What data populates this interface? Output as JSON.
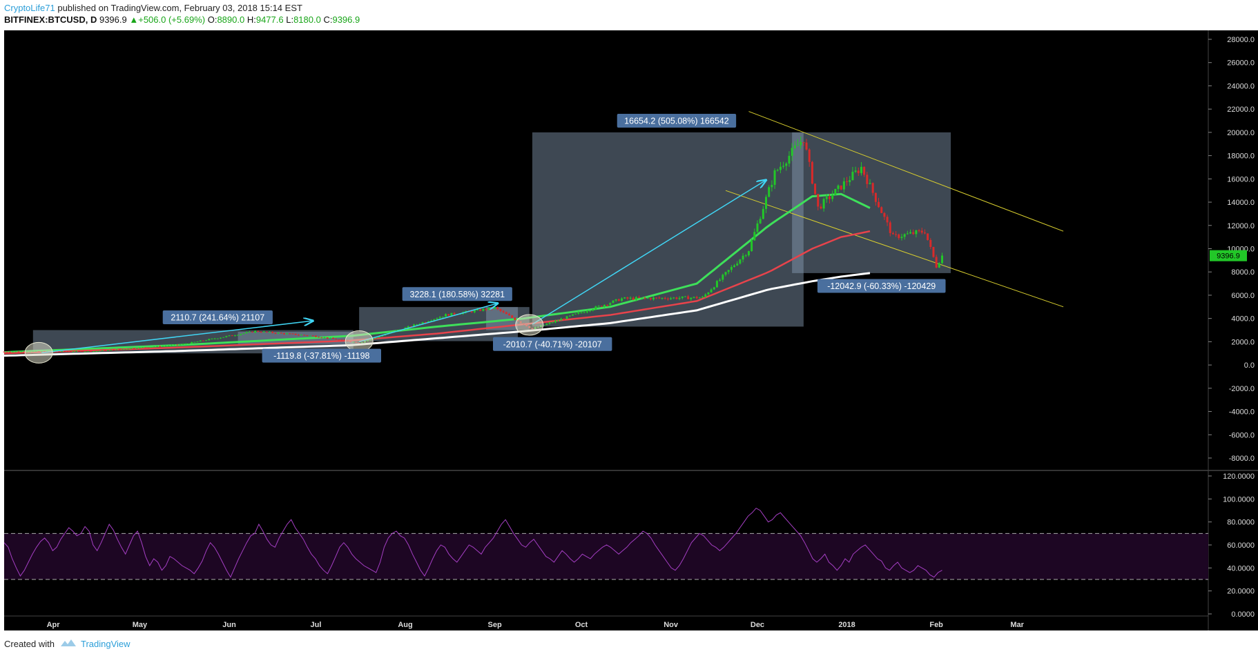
{
  "header": {
    "author": "CryptoLife71",
    "published_text": "published on TradingView.com, February 03, 2018 15:14 EST",
    "symbol": "BITFINEX:BTCUSD, D",
    "last": "9396.9",
    "change": "+506.0 (+5.69%)",
    "o_label": "O:",
    "o_value": "8890.0",
    "h_label": "H:",
    "h_value": "9477.6",
    "l_label": "L:",
    "l_value": "8180.0",
    "c_label": "C:",
    "c_value": "9396.9"
  },
  "footer": {
    "created_with": "Created with",
    "brand": "TradingView"
  },
  "colors": {
    "background": "#000000",
    "ma_green": "#3ee05a",
    "ma_red": "#e8434b",
    "ma_white": "#ffffff",
    "candle_up": "#22c728",
    "candle_down": "#d82a2a",
    "rsi_line": "#a53fc4",
    "channel": "#d9cf2e",
    "arrow": "#40d6f5",
    "box_fill": "#8a9fb8",
    "label_bg": "#4a6f9e",
    "price_tag": "#22c728"
  },
  "chart_data": [
    {
      "type": "candlestick",
      "x_axis_labels": [
        "Apr",
        "May",
        "Jun",
        "Jul",
        "Aug",
        "Sep",
        "Oct",
        "Nov",
        "Dec",
        "2018",
        "Feb",
        "Mar"
      ],
      "y_ticks": [
        "28000.0",
        "26000.0",
        "24000.0",
        "22000.0",
        "20000.0",
        "18000.0",
        "16000.0",
        "14000.0",
        "12000.0",
        "10000.0",
        "8000.0",
        "6000.0",
        "4000.0",
        "2000.0",
        "0.0",
        "-2000.0",
        "-4000.0",
        "-6000.0",
        "-8000.0"
      ],
      "ylim": [
        -8800,
        29000
      ],
      "last_price_tag": "9396.9",
      "price_path_approx": [
        {
          "date": "2017-03-15",
          "close": 1150
        },
        {
          "date": "2017-04-15",
          "close": 1180
        },
        {
          "date": "2017-05-15",
          "close": 1750
        },
        {
          "date": "2017-06-10",
          "close": 2900
        },
        {
          "date": "2017-06-30",
          "close": 2500
        },
        {
          "date": "2017-07-16",
          "close": 1900
        },
        {
          "date": "2017-08-15",
          "close": 4300
        },
        {
          "date": "2017-09-01",
          "close": 4900
        },
        {
          "date": "2017-09-14",
          "close": 3100
        },
        {
          "date": "2017-10-15",
          "close": 5700
        },
        {
          "date": "2017-11-12",
          "close": 5800
        },
        {
          "date": "2017-11-28",
          "close": 9900
        },
        {
          "date": "2017-12-07",
          "close": 16500
        },
        {
          "date": "2017-12-17",
          "close": 19500
        },
        {
          "date": "2017-12-22",
          "close": 13500
        },
        {
          "date": "2018-01-06",
          "close": 17000
        },
        {
          "date": "2018-01-17",
          "close": 11000
        },
        {
          "date": "2018-01-28",
          "close": 11500
        },
        {
          "date": "2018-02-01",
          "close": 8500
        },
        {
          "date": "2018-02-03",
          "close": 9396.9
        }
      ],
      "moving_averages": [
        {
          "color": "green",
          "points": [
            [
              0,
              1100
            ],
            [
              60,
              1700
            ],
            [
              120,
              2500
            ],
            [
              150,
              3300
            ],
            [
              180,
              4000
            ],
            [
              210,
              5000
            ],
            [
              240,
              7000
            ],
            [
              265,
              12000
            ],
            [
              280,
              14500
            ],
            [
              290,
              14700
            ],
            [
              300,
              13500
            ]
          ]
        },
        {
          "color": "red",
          "points": [
            [
              0,
              1000
            ],
            [
              60,
              1500
            ],
            [
              120,
              2100
            ],
            [
              150,
              2700
            ],
            [
              180,
              3500
            ],
            [
              210,
              4300
            ],
            [
              240,
              5500
            ],
            [
              265,
              8000
            ],
            [
              280,
              10000
            ],
            [
              290,
              11000
            ],
            [
              300,
              11500
            ]
          ]
        },
        {
          "color": "white",
          "points": [
            [
              0,
              800
            ],
            [
              60,
              1200
            ],
            [
              120,
              1700
            ],
            [
              150,
              2300
            ],
            [
              180,
              2900
            ],
            [
              210,
              3600
            ],
            [
              240,
              4700
            ],
            [
              265,
              6500
            ],
            [
              280,
              7200
            ],
            [
              290,
              7600
            ],
            [
              300,
              7900
            ]
          ]
        }
      ],
      "measure_labels": [
        "2110.7 (241.64%) 21107",
        "-1119.8 (-37.81%) -11198",
        "3228.1 (180.58%) 32281",
        "-2010.7 (-40.71%) -20107",
        "16654.2 (505.08%) 166542",
        "-12042.9 (-60.33%) -120429"
      ]
    },
    {
      "type": "line",
      "indicator": "RSI",
      "y_ticks": [
        "120.0000",
        "100.0000",
        "80.0000",
        "60.0000",
        "40.0000",
        "20.0000",
        "0.0000"
      ],
      "ylim": [
        0,
        120
      ],
      "bands": [
        30,
        70
      ],
      "values": [
        62,
        58,
        48,
        40,
        33,
        38,
        45,
        52,
        58,
        63,
        66,
        62,
        55,
        58,
        65,
        70,
        75,
        72,
        68,
        70,
        76,
        72,
        60,
        55,
        62,
        70,
        78,
        73,
        65,
        58,
        52,
        60,
        68,
        72,
        62,
        50,
        42,
        48,
        45,
        38,
        42,
        50,
        48,
        45,
        42,
        40,
        38,
        35,
        40,
        46,
        55,
        62,
        58,
        52,
        45,
        38,
        32,
        40,
        48,
        55,
        62,
        68,
        70,
        78,
        72,
        65,
        60,
        58,
        66,
        72,
        78,
        82,
        75,
        70,
        65,
        58,
        52,
        48,
        42,
        38,
        35,
        42,
        50,
        58,
        62,
        58,
        52,
        48,
        45,
        42,
        40,
        38,
        36,
        45,
        58,
        66,
        70,
        72,
        68,
        66,
        60,
        52,
        45,
        38,
        33,
        40,
        48,
        55,
        60,
        58,
        52,
        48,
        45,
        50,
        55,
        60,
        58,
        55,
        52,
        58,
        62,
        66,
        72,
        78,
        82,
        76,
        70,
        65,
        60,
        58,
        62,
        65,
        60,
        55,
        50,
        48,
        45,
        50,
        55,
        52,
        48,
        45,
        48,
        52,
        50,
        48,
        52,
        55,
        58,
        60,
        58,
        55,
        52,
        55,
        58,
        62,
        65,
        68,
        72,
        70,
        66,
        60,
        55,
        50,
        45,
        40,
        38,
        42,
        48,
        55,
        62,
        66,
        70,
        68,
        64,
        60,
        58,
        55,
        58,
        62,
        66,
        70,
        75,
        80,
        85,
        88,
        92,
        90,
        85,
        80,
        82,
        86,
        88,
        84,
        80,
        76,
        72,
        68,
        62,
        55,
        48,
        45,
        48,
        52,
        45,
        42,
        38,
        42,
        48,
        45,
        52,
        55,
        58,
        60,
        56,
        52,
        48,
        46,
        40,
        38,
        42,
        45,
        40,
        38,
        36,
        38,
        42,
        40,
        38,
        34,
        32,
        36,
        38
      ]
    }
  ]
}
